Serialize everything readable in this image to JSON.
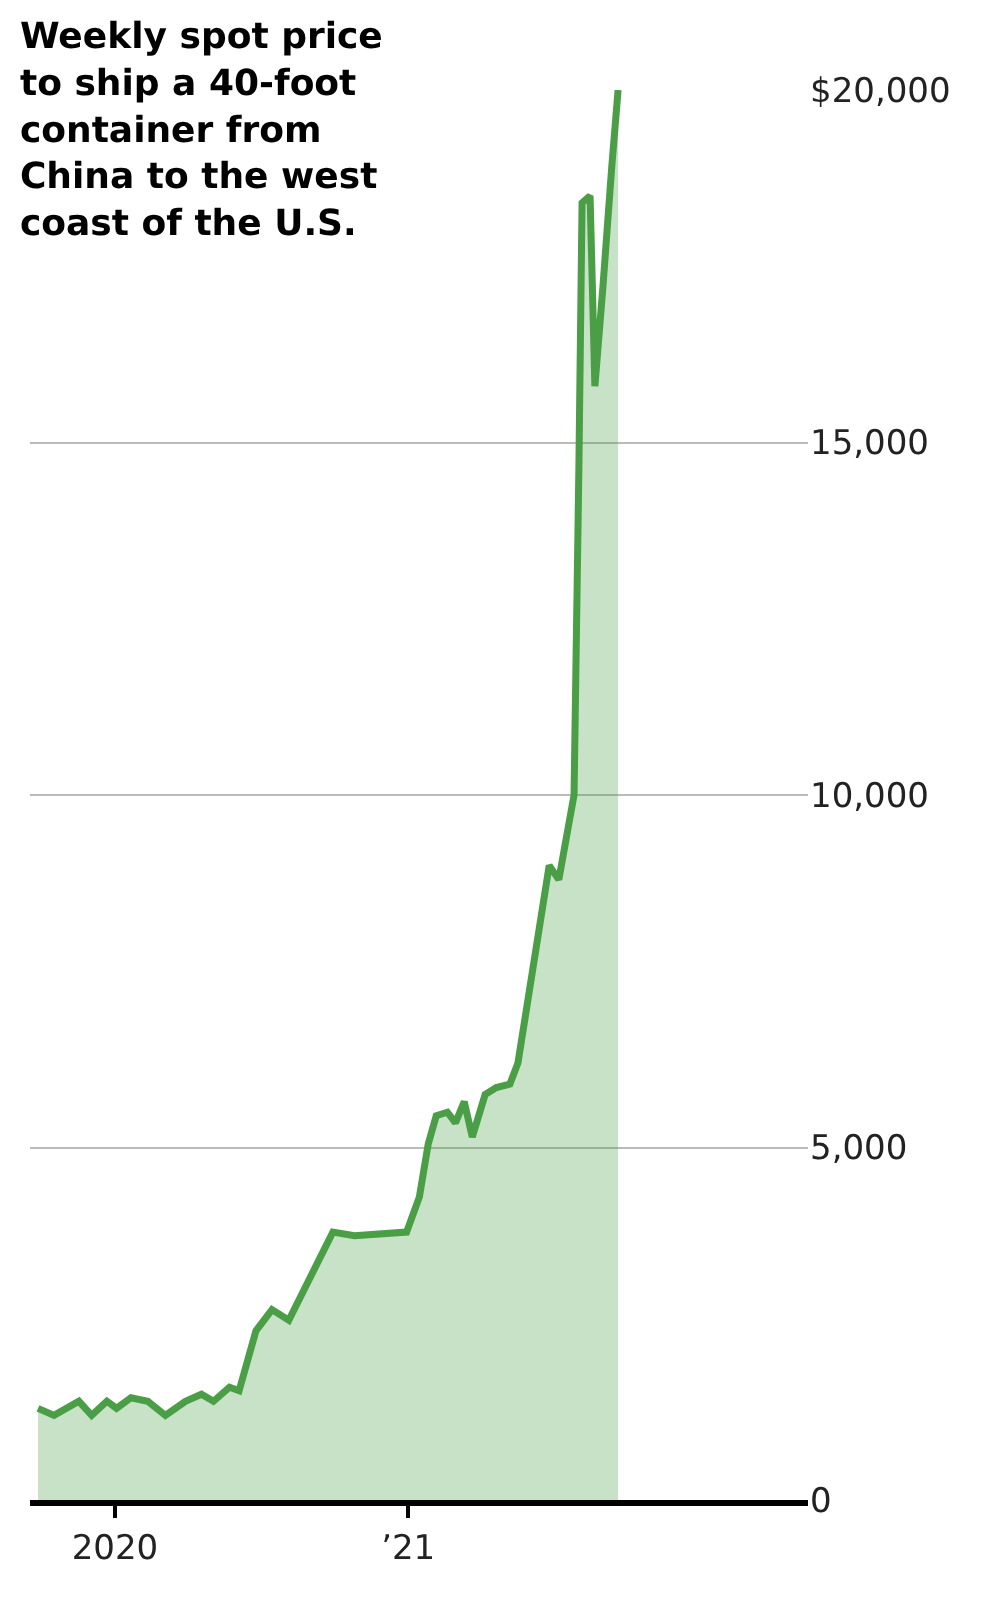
{
  "chart_data": {
    "type": "area",
    "title": "Weekly spot price to ship a 40-foot container from China to the west coast of the U.S.",
    "x": [
      "2019-09-27",
      "2019-10-17",
      "2019-11-17",
      "2019-12-03",
      "2019-12-22",
      "2020-01-03",
      "2020-01-21",
      "2020-02-11",
      "2020-03-04",
      "2020-03-29",
      "2020-04-18",
      "2020-05-03",
      "2020-05-23",
      "2020-06-04",
      "2020-06-25",
      "2020-07-15",
      "2020-08-05",
      "2020-09-29",
      "2020-10-26",
      "2020-12-30",
      "2021-01-15",
      "2021-01-26",
      "2021-02-05",
      "2021-02-19",
      "2021-03-01",
      "2021-03-12",
      "2021-03-22",
      "2021-04-07",
      "2021-04-21",
      "2021-05-08",
      "2021-05-18",
      "2021-06-26",
      "2021-07-08",
      "2021-07-27",
      "2021-08-02",
      "2021-08-06",
      "2021-08-16",
      "2021-08-22",
      "2021-09-01",
      "2021-09-12",
      "2021-09-20"
    ],
    "series": [
      {
        "color": "#4a9e45",
        "values": [
          1300,
          1200,
          1400,
          1200,
          1400,
          1300,
          1450,
          1400,
          1200,
          1400,
          1500,
          1400,
          1600,
          1550,
          2400,
          2700,
          2550,
          3800,
          3750,
          3800,
          4300,
          5050,
          5450,
          5500,
          5350,
          5650,
          5150,
          5750,
          5850,
          5900,
          6200,
          9000,
          8800,
          10000,
          14600,
          18400,
          18500,
          15800,
          17200,
          18900,
          20000
        ]
      }
    ],
    "xlim": [
      "2019-09-17",
      "2022-05-15"
    ],
    "xticks": [
      {
        "value": "2020-01-01",
        "label": "2020"
      },
      {
        "value": "2021-01-01",
        "label": "’21"
      }
    ],
    "ylim": [
      0,
      20000
    ],
    "yticks": [
      0,
      {
        "value": 5000,
        "label": "5,000"
      },
      {
        "value": 10000,
        "label": "10,000"
      },
      {
        "value": 15000,
        "label": "15,000"
      },
      {
        "value": 20000,
        "label": "$20,000"
      }
    ],
    "grid": "y",
    "legend": false
  }
}
